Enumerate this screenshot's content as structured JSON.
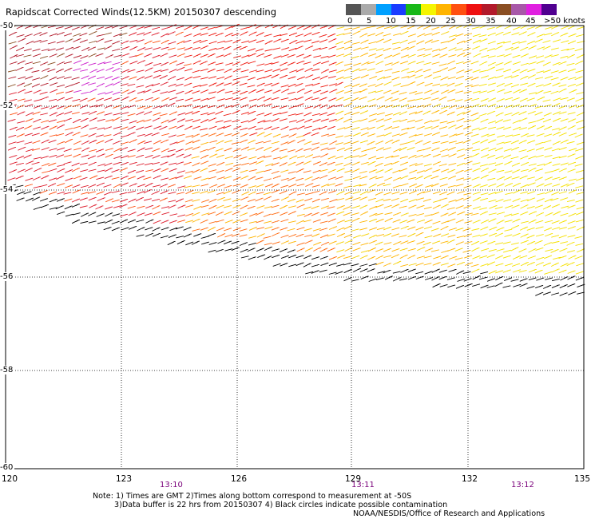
{
  "title": "Rapidscat Corrected Winds(12.5KM) 20150307 descending",
  "legend": {
    "labels": [
      "0",
      "5",
      "10",
      "15",
      "20",
      "25",
      "30",
      "35",
      "40",
      "45",
      ">50 knots"
    ],
    "colors": [
      "#555555",
      "#aaaaaa",
      "#00a0ff",
      "#1a3cff",
      "#18b818",
      "#f5f500",
      "#ffb400",
      "#ff5010",
      "#ee1010",
      "#b21a2a",
      "#8a4e22",
      "#a858a8",
      "#e020e0",
      "#500090"
    ]
  },
  "map": {
    "lon_range": [
      120,
      135
    ],
    "lat_range": [
      -60,
      -50
    ],
    "lat_labels": [
      "-50",
      "-52",
      "-54",
      "-56",
      "-58",
      "-60"
    ],
    "lon_labels": [
      "120",
      "123",
      "126",
      "129",
      "132",
      "135"
    ],
    "time_labels": [
      "13:10",
      "13:11",
      "13:12"
    ]
  },
  "notes": {
    "line1": "Note: 1) Times are GMT 2)Times along bottom correspond to measurement at -50S",
    "line2": "3)Data buffer is 22 hrs from 20150307 4) Black circles indicate possible contamination",
    "credit": "NOAA/NESDIS/Office of Research and Applications"
  }
}
